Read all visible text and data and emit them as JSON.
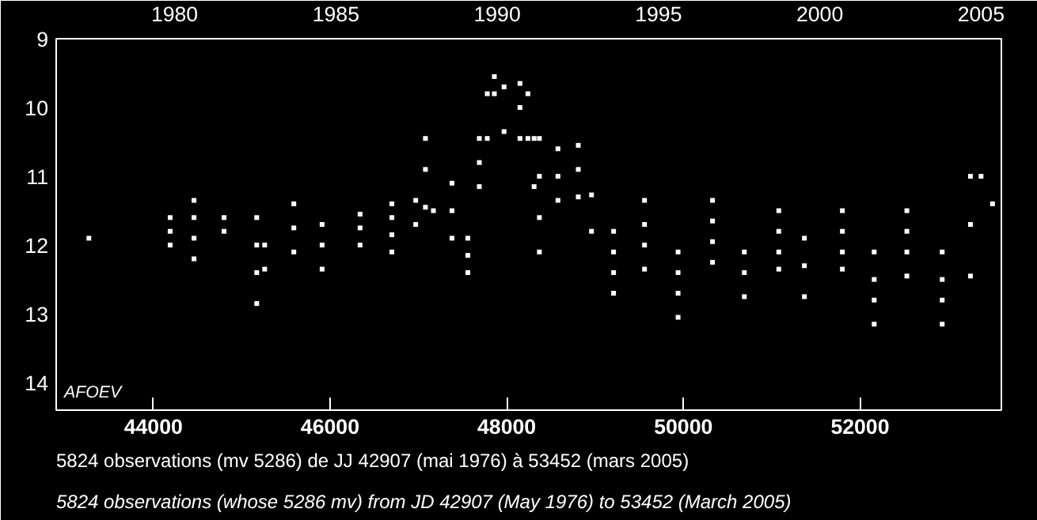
{
  "chart_data": {
    "type": "scatter",
    "x": [
      43270,
      44190,
      44190,
      44190,
      44460,
      44460,
      44460,
      44460,
      44800,
      44800,
      45170,
      45170,
      45170,
      45170,
      45260,
      45260,
      45590,
      45590,
      45590,
      45910,
      45910,
      45910,
      46340,
      46340,
      46340,
      46700,
      46700,
      46700,
      46700,
      46970,
      46970,
      47080,
      47080,
      47080,
      47170,
      47380,
      47380,
      47380,
      47560,
      47560,
      47560,
      47690,
      47690,
      47690,
      47780,
      47780,
      47860,
      47860,
      47970,
      47970,
      48150,
      48150,
      48150,
      48240,
      48240,
      48310,
      48310,
      48370,
      48370,
      48370,
      48370,
      48580,
      48580,
      48580,
      48810,
      48810,
      48810,
      48960,
      48960,
      49210,
      49210,
      49210,
      49210,
      49560,
      49560,
      49560,
      49560,
      49940,
      49940,
      49940,
      49940,
      50330,
      50330,
      50330,
      50330,
      50690,
      50690,
      50690,
      51080,
      51080,
      51080,
      51080,
      51370,
      51370,
      51370,
      51800,
      51800,
      51800,
      51800,
      52160,
      52160,
      52160,
      52160,
      52530,
      52530,
      52530,
      52530,
      52930,
      52930,
      52930,
      52930,
      53250,
      53250,
      53250,
      53370,
      53500
    ],
    "values": [
      11.9,
      11.6,
      11.8,
      12.0,
      11.35,
      11.6,
      11.9,
      12.2,
      11.6,
      11.8,
      11.6,
      12.0,
      12.4,
      12.85,
      12.0,
      12.35,
      11.4,
      11.75,
      12.1,
      11.7,
      12.0,
      12.35,
      11.55,
      11.75,
      12.0,
      11.4,
      11.6,
      11.85,
      12.1,
      11.35,
      11.7,
      10.45,
      10.9,
      11.45,
      11.5,
      11.1,
      11.5,
      11.9,
      11.9,
      12.15,
      12.4,
      10.45,
      10.8,
      11.15,
      9.8,
      10.45,
      9.55,
      9.8,
      9.7,
      10.35,
      9.65,
      10.0,
      10.45,
      9.8,
      10.45,
      10.45,
      11.15,
      10.45,
      11.0,
      11.6,
      12.1,
      10.6,
      11.0,
      11.35,
      10.55,
      10.9,
      11.3,
      11.27,
      11.8,
      11.8,
      12.1,
      12.4,
      12.7,
      11.35,
      11.7,
      12.0,
      12.35,
      12.1,
      12.4,
      12.7,
      13.05,
      11.35,
      11.65,
      11.95,
      12.25,
      12.1,
      12.4,
      12.75,
      11.5,
      11.8,
      12.1,
      12.35,
      11.9,
      12.3,
      12.75,
      11.5,
      11.8,
      12.1,
      12.35,
      12.1,
      12.5,
      12.8,
      13.15,
      11.5,
      11.8,
      12.1,
      12.45,
      12.1,
      12.5,
      12.8,
      13.15,
      11.0,
      11.7,
      12.45,
      11.0,
      11.4
    ],
    "color": "#ffffff",
    "marker": "square",
    "xlim": [
      42900,
      53600
    ],
    "xticks": [
      44000,
      46000,
      48000,
      50000,
      52000
    ],
    "x2lim": [
      1976.33,
      2005.63
    ],
    "x2ticks": [
      1980,
      1985,
      1990,
      1995,
      2000,
      2005
    ],
    "ylim": [
      14.4,
      9.0
    ],
    "yticks": [
      9,
      10,
      11,
      12,
      13,
      14
    ],
    "grid": false,
    "annotations": [
      "AFOEV",
      "5824 observations (mv 5286) de JJ 42907 (mai 1976) à 53452 (mars 2005)",
      "5824 observations (whose 5286 mv) from JD 42907 (May 1976) to 53452 (March 2005)"
    ]
  }
}
